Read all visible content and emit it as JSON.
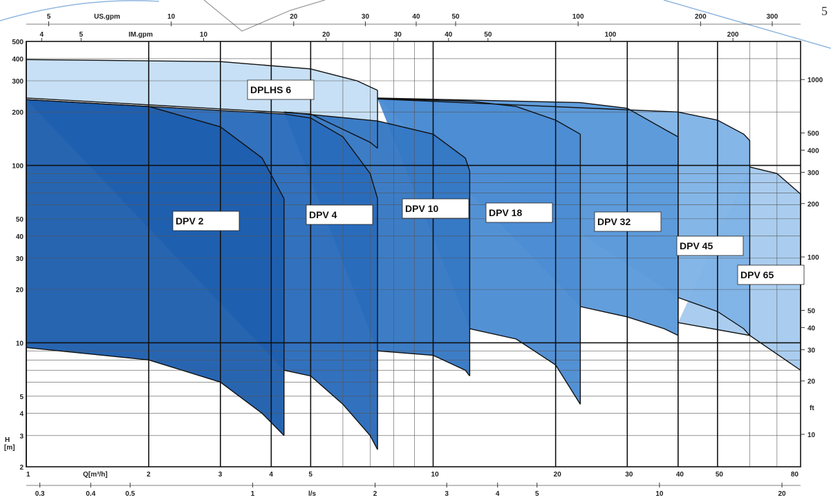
{
  "page_number": "5",
  "chart_data": {
    "type": "area",
    "x_scale": "log",
    "y_scale": "log",
    "xlabel": "Q[m³/h]",
    "ylabel": "H [m]",
    "xlim": [
      1,
      80
    ],
    "ylim": [
      2,
      500
    ],
    "grid": true,
    "x_ticks": [
      "1",
      "2",
      "3",
      "4",
      "5",
      "10",
      "20",
      "30",
      "40",
      "50",
      "80"
    ],
    "y_ticks": [
      "2",
      "3",
      "4",
      "5",
      "10",
      "20",
      "30",
      "40",
      "50",
      "100",
      "200",
      "300",
      "400",
      "500"
    ],
    "secondary_axes": {
      "top_usgpm": {
        "label": "US.gpm",
        "ticks": [
          "5",
          "10",
          "20",
          "30",
          "40",
          "50",
          "100",
          "200",
          "300"
        ]
      },
      "top_imgpm": {
        "label": "IM.gpm",
        "ticks": [
          "4",
          "5",
          "10",
          "20",
          "30",
          "40",
          "50",
          "100",
          "200"
        ]
      },
      "bottom_ls": {
        "label": "l/s",
        "ticks": [
          "0.3",
          "0.4",
          "0.5",
          "1",
          "2",
          "3",
          "4",
          "5",
          "10",
          "20"
        ]
      },
      "right_ft": {
        "label": "ft",
        "ticks": [
          "10",
          "20",
          "30",
          "40",
          "50",
          "100",
          "200",
          "300",
          "400",
          "500",
          "1000"
        ]
      }
    },
    "series": [
      {
        "name": "DPV 2",
        "color": "#1e5fae",
        "top_curve": [
          [
            1,
            235
          ],
          [
            2,
            215
          ],
          [
            3,
            165
          ],
          [
            3.8,
            110
          ],
          [
            4.3,
            65
          ]
        ],
        "bottom_curve": [
          [
            1,
            9.4
          ],
          [
            2,
            8
          ],
          [
            3,
            6
          ],
          [
            3.8,
            4
          ],
          [
            4.3,
            3
          ]
        ]
      },
      {
        "name": "DPV 4",
        "color": "#2a6bbb",
        "top_curve": [
          [
            1,
            235
          ],
          [
            4.3,
            195
          ],
          [
            5,
            185
          ],
          [
            6,
            145
          ],
          [
            7,
            90
          ],
          [
            7.3,
            65
          ]
        ],
        "bottom_curve": [
          [
            4.3,
            7
          ],
          [
            5,
            6.5
          ],
          [
            6,
            4.5
          ],
          [
            7,
            3
          ],
          [
            7.3,
            2.5
          ]
        ]
      },
      {
        "name": "DPV 10",
        "color": "#3578c4",
        "top_curve": [
          [
            4.3,
            200
          ],
          [
            7.3,
            178
          ],
          [
            10,
            150
          ],
          [
            12,
            110
          ],
          [
            12.3,
            93
          ]
        ],
        "bottom_curve": [
          [
            7.3,
            9
          ],
          [
            10,
            8.5
          ],
          [
            12,
            7
          ],
          [
            12.3,
            6.5
          ]
        ]
      },
      {
        "name": "DPV 18",
        "color": "#4c8dd3",
        "top_curve": [
          [
            7.3,
            238
          ],
          [
            12.3,
            230
          ],
          [
            16,
            215
          ],
          [
            20,
            180
          ],
          [
            23,
            150
          ]
        ],
        "bottom_curve": [
          [
            12.3,
            12
          ],
          [
            16,
            10.5
          ],
          [
            20,
            7.5
          ],
          [
            23,
            4.5
          ]
        ]
      },
      {
        "name": "DPV 32",
        "color": "#5c9adb",
        "top_curve": [
          [
            7.3,
            240
          ],
          [
            23,
            226
          ],
          [
            30,
            210
          ],
          [
            37,
            160
          ],
          [
            40,
            145
          ]
        ],
        "bottom_curve": [
          [
            23,
            16
          ],
          [
            30,
            14
          ],
          [
            37,
            12
          ],
          [
            40,
            11
          ]
        ]
      },
      {
        "name": "DPV 45",
        "color": "#7fb3e6",
        "top_curve": [
          [
            7.3,
            237
          ],
          [
            40,
            200
          ],
          [
            50,
            180
          ],
          [
            58,
            150
          ],
          [
            60,
            138
          ]
        ],
        "bottom_curve": [
          [
            40,
            18
          ],
          [
            50,
            15
          ],
          [
            58,
            12
          ],
          [
            60,
            11
          ]
        ]
      },
      {
        "name": "DPV 65",
        "color": "#a7cbee",
        "top_curve": [
          [
            60,
            98
          ],
          [
            70,
            90
          ],
          [
            80,
            69
          ]
        ],
        "bottom_curve": [
          [
            40,
            13
          ],
          [
            60,
            11
          ],
          [
            80,
            7
          ]
        ]
      },
      {
        "name": "DPLHS 6",
        "color": "#c5dff5",
        "top_curve": [
          [
            1,
            395
          ],
          [
            3,
            385
          ],
          [
            5,
            350
          ],
          [
            6.5,
            300
          ],
          [
            7.3,
            265
          ]
        ],
        "bottom_curve": [
          [
            1,
            240
          ],
          [
            5,
            195
          ],
          [
            7,
            135
          ],
          [
            7.3,
            125
          ]
        ]
      }
    ]
  }
}
